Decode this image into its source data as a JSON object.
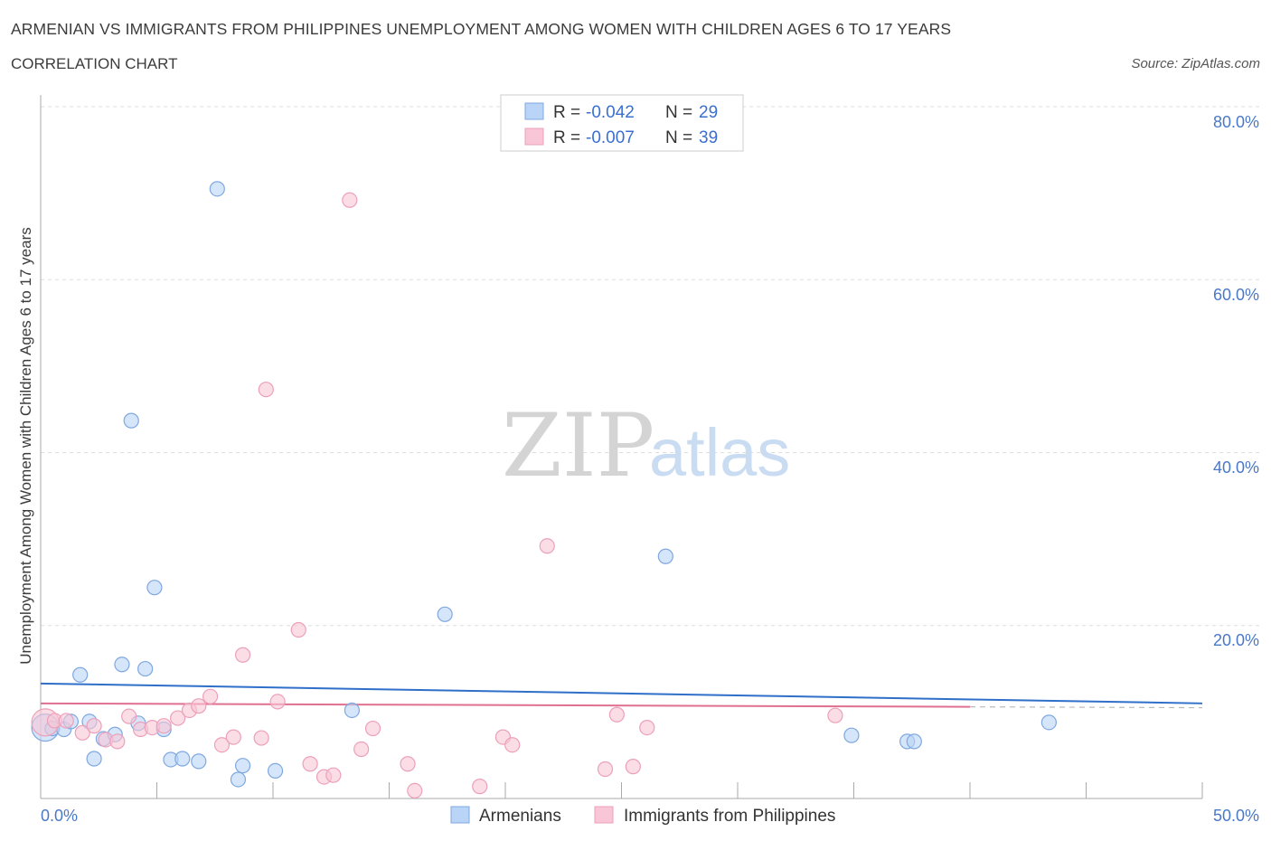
{
  "title": "ARMENIAN VS IMMIGRANTS FROM PHILIPPINES UNEMPLOYMENT AMONG WOMEN WITH CHILDREN AGES 6 TO 17 YEARS",
  "subtitle": "CORRELATION CHART",
  "source": "Source: ZipAtlas.com",
  "watermark": {
    "zip": "ZIP",
    "atlas": "atlas"
  },
  "colors": {
    "armenian_fill": "#b9d4f6",
    "armenian_stroke": "#7fa8e0",
    "armenian_line": "#2f6fc9",
    "phil_fill": "#f8c6d6",
    "phil_stroke": "#eca0ba",
    "phil_line": "#e0708f",
    "accent_text": "#4a78c8"
  },
  "legend": {
    "items": [
      {
        "r_label": "R =",
        "r_value": "-0.042",
        "n_label": "N =",
        "n_value": "29"
      },
      {
        "r_label": "R =",
        "r_value": "-0.007",
        "n_label": "N =",
        "n_value": "39"
      }
    ]
  },
  "chart_data": {
    "type": "scatter",
    "title": "ARMENIAN VS IMMIGRANTS FROM PHILIPPINES UNEMPLOYMENT AMONG WOMEN WITH CHILDREN AGES 6 TO 17 YEARS",
    "xlabel": "",
    "ylabel": "Unemployment Among Women with Children Ages 6 to 17 years",
    "xlim": [
      0,
      50
    ],
    "ylim": [
      0,
      80
    ],
    "x_tick_labels": [
      "0.0%",
      "50.0%"
    ],
    "y_tick_labels": [
      "20.0%",
      "40.0%",
      "60.0%",
      "80.0%"
    ],
    "y_ticks": [
      20,
      40,
      60,
      80
    ],
    "grid": true,
    "series": [
      {
        "name": "Armenians",
        "trend": {
          "x": [
            0,
            50
          ],
          "y": [
            13.3,
            11.0
          ]
        },
        "points": [
          {
            "x": 0.2,
            "y": 8.2,
            "big": true
          },
          {
            "x": 0.5,
            "y": 8.1
          },
          {
            "x": 1.0,
            "y": 8.0
          },
          {
            "x": 1.3,
            "y": 8.9
          },
          {
            "x": 1.7,
            "y": 14.3
          },
          {
            "x": 2.1,
            "y": 8.9
          },
          {
            "x": 2.3,
            "y": 4.6
          },
          {
            "x": 2.7,
            "y": 6.9
          },
          {
            "x": 3.2,
            "y": 7.4
          },
          {
            "x": 3.5,
            "y": 15.5
          },
          {
            "x": 3.9,
            "y": 43.7
          },
          {
            "x": 4.2,
            "y": 8.7
          },
          {
            "x": 4.5,
            "y": 15.0
          },
          {
            "x": 4.9,
            "y": 24.4
          },
          {
            "x": 5.3,
            "y": 8.0
          },
          {
            "x": 5.6,
            "y": 4.5
          },
          {
            "x": 6.1,
            "y": 4.6
          },
          {
            "x": 6.8,
            "y": 4.3
          },
          {
            "x": 7.6,
            "y": 70.5
          },
          {
            "x": 8.5,
            "y": 2.2
          },
          {
            "x": 8.7,
            "y": 3.8
          },
          {
            "x": 10.1,
            "y": 3.2
          },
          {
            "x": 13.4,
            "y": 10.2
          },
          {
            "x": 17.4,
            "y": 21.3
          },
          {
            "x": 26.9,
            "y": 28.0
          },
          {
            "x": 34.9,
            "y": 7.3
          },
          {
            "x": 37.3,
            "y": 6.6
          },
          {
            "x": 37.6,
            "y": 6.6
          },
          {
            "x": 43.4,
            "y": 8.8
          }
        ]
      },
      {
        "name": "Immigrants from Philippines",
        "trend": {
          "x": [
            0,
            40
          ],
          "y": [
            11.0,
            10.6
          ]
        },
        "points": [
          {
            "x": 0.2,
            "y": 8.8,
            "big": true
          },
          {
            "x": 0.6,
            "y": 9.0
          },
          {
            "x": 1.1,
            "y": 9.0
          },
          {
            "x": 1.8,
            "y": 7.6
          },
          {
            "x": 2.3,
            "y": 8.4
          },
          {
            "x": 2.8,
            "y": 6.8
          },
          {
            "x": 3.3,
            "y": 6.6
          },
          {
            "x": 3.8,
            "y": 9.5
          },
          {
            "x": 4.3,
            "y": 8.0
          },
          {
            "x": 4.8,
            "y": 8.2
          },
          {
            "x": 5.3,
            "y": 8.4
          },
          {
            "x": 5.9,
            "y": 9.3
          },
          {
            "x": 6.4,
            "y": 10.2
          },
          {
            "x": 6.8,
            "y": 10.7
          },
          {
            "x": 7.3,
            "y": 11.8
          },
          {
            "x": 7.8,
            "y": 6.2
          },
          {
            "x": 8.3,
            "y": 7.1
          },
          {
            "x": 8.7,
            "y": 16.6
          },
          {
            "x": 9.5,
            "y": 7.0
          },
          {
            "x": 9.7,
            "y": 47.3
          },
          {
            "x": 10.2,
            "y": 11.2
          },
          {
            "x": 11.1,
            "y": 19.5
          },
          {
            "x": 11.6,
            "y": 4.0
          },
          {
            "x": 12.2,
            "y": 2.5
          },
          {
            "x": 12.6,
            "y": 2.7
          },
          {
            "x": 13.3,
            "y": 69.2
          },
          {
            "x": 13.8,
            "y": 5.7
          },
          {
            "x": 14.3,
            "y": 8.1
          },
          {
            "x": 15.8,
            "y": 4.0
          },
          {
            "x": 16.1,
            "y": 0.9
          },
          {
            "x": 18.9,
            "y": 1.4
          },
          {
            "x": 19.9,
            "y": 7.1
          },
          {
            "x": 20.3,
            "y": 6.2
          },
          {
            "x": 21.8,
            "y": 29.2
          },
          {
            "x": 24.3,
            "y": 3.4
          },
          {
            "x": 24.8,
            "y": 9.7
          },
          {
            "x": 25.5,
            "y": 3.7
          },
          {
            "x": 26.1,
            "y": 8.2
          },
          {
            "x": 34.2,
            "y": 9.6
          }
        ]
      }
    ]
  },
  "bottom_legend": [
    "Armenians",
    "Immigrants from Philippines"
  ]
}
